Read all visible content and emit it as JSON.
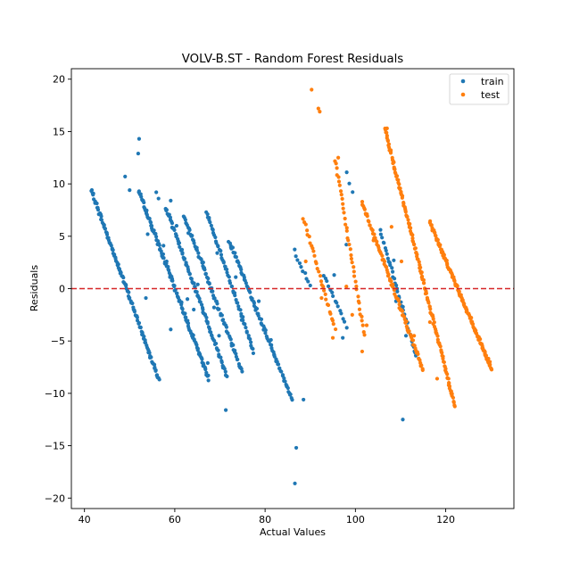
{
  "chart_data": {
    "type": "scatter",
    "title": "VOLV-B.ST - Random Forest Residuals",
    "xlabel": "Actual Values",
    "ylabel": "Residuals",
    "xlim": [
      37.1,
      135.1
    ],
    "ylim": [
      -21.0,
      21.0
    ],
    "xticks": [
      40,
      60,
      80,
      100,
      120
    ],
    "yticks": [
      -20,
      -15,
      -10,
      -5,
      0,
      5,
      10,
      15,
      20
    ],
    "grid": false,
    "legend_position": "top-right",
    "reference_line": {
      "y": 0,
      "color": "#d62728",
      "style": "dashed"
    },
    "series": [
      {
        "name": "train",
        "color": "#1f77b4",
        "segments": [
          {
            "x0": 41.5,
            "y0": 9.4,
            "x1": 56.5,
            "y1": -8.7,
            "n": 120
          },
          {
            "x0": 52.0,
            "y0": 9.3,
            "x1": 67.5,
            "y1": -8.6,
            "n": 120
          },
          {
            "x0": 58.0,
            "y0": 7.8,
            "x1": 71.5,
            "y1": -8.3,
            "n": 90
          },
          {
            "x0": 62.0,
            "y0": 7.0,
            "x1": 75.0,
            "y1": -8.0,
            "n": 80
          },
          {
            "x0": 67.0,
            "y0": 7.3,
            "x1": 77.5,
            "y1": -6.0,
            "n": 60
          },
          {
            "x0": 72.0,
            "y0": 4.6,
            "x1": 86.0,
            "y1": -10.6,
            "n": 90
          },
          {
            "x0": 86.5,
            "y0": 3.6,
            "x1": 90.0,
            "y1": 0.3,
            "n": 10
          },
          {
            "x0": 93.0,
            "y0": 1.3,
            "x1": 98.0,
            "y1": -3.6,
            "n": 15
          },
          {
            "x0": 98.0,
            "y0": 11.0,
            "x1": 99.5,
            "y1": 9.2,
            "n": 3
          },
          {
            "x0": 105.5,
            "y0": 5.5,
            "x1": 113.5,
            "y1": -6.5,
            "n": 40
          }
        ],
        "points": [
          [
            52.1,
            14.3
          ],
          [
            51.9,
            12.9
          ],
          [
            49.0,
            10.7
          ],
          [
            50.0,
            9.4
          ],
          [
            55.9,
            9.2
          ],
          [
            56.4,
            8.6
          ],
          [
            59.1,
            8.4
          ],
          [
            60.4,
            6.0
          ],
          [
            54.0,
            5.2
          ],
          [
            57.5,
            4.1
          ],
          [
            63.0,
            5.3
          ],
          [
            58.2,
            2.6
          ],
          [
            61.5,
            -1.3
          ],
          [
            53.6,
            -0.9
          ],
          [
            59.1,
            -3.9
          ],
          [
            62.8,
            -1.0
          ],
          [
            65.1,
            0.4
          ],
          [
            66.3,
            2.5
          ],
          [
            64.2,
            -2.0
          ],
          [
            68.7,
            -1.8
          ],
          [
            69.4,
            3.4
          ],
          [
            71.2,
            2.1
          ],
          [
            69.8,
            -4.5
          ],
          [
            65.9,
            -6.6
          ],
          [
            67.3,
            -7.1
          ],
          [
            73.5,
            1.1
          ],
          [
            74.8,
            -3.0
          ],
          [
            71.3,
            -11.6
          ],
          [
            78.6,
            -1.2
          ],
          [
            81.3,
            -4.9
          ],
          [
            86.9,
            -15.2
          ],
          [
            86.6,
            -18.6
          ],
          [
            88.5,
            -10.6
          ],
          [
            98.0,
            4.2
          ],
          [
            95.3,
            1.3
          ],
          [
            97.2,
            -4.7
          ],
          [
            110.5,
            -12.5
          ],
          [
            108.5,
            2.7
          ],
          [
            109.0,
            -1.2
          ],
          [
            111.2,
            -4.5
          ]
        ]
      },
      {
        "name": "test",
        "color": "#ff7f0e",
        "segments": [
          {
            "x0": 88.5,
            "y0": 6.7,
            "x1": 95.5,
            "y1": -3.9,
            "n": 30
          },
          {
            "x0": 95.5,
            "y0": 12.3,
            "x1": 102.0,
            "y1": -4.5,
            "n": 40
          },
          {
            "x0": 101.5,
            "y0": 8.2,
            "x1": 115.0,
            "y1": -7.8,
            "n": 90
          },
          {
            "x0": 106.5,
            "y0": 15.3,
            "x1": 122.0,
            "y1": -11.2,
            "n": 150
          },
          {
            "x0": 116.5,
            "y0": 6.3,
            "x1": 130.2,
            "y1": -7.7,
            "n": 130
          }
        ],
        "points": [
          [
            90.3,
            19.0
          ],
          [
            91.8,
            17.2
          ],
          [
            92.1,
            16.9
          ],
          [
            89.0,
            2.6
          ],
          [
            95.0,
            -4.7
          ],
          [
            101.5,
            -6.0
          ],
          [
            99.3,
            -2.5
          ],
          [
            96.2,
            12.5
          ],
          [
            104.0,
            4.6
          ],
          [
            108.0,
            5.9
          ],
          [
            110.2,
            2.6
          ],
          [
            113.0,
            -4.5
          ],
          [
            116.5,
            -3.2
          ],
          [
            118.1,
            -8.6
          ],
          [
            120.7,
            -9.0
          ],
          [
            121.2,
            -10.0
          ],
          [
            107.0,
            15.3
          ],
          [
            98.0,
            0.2
          ],
          [
            102.5,
            -3.5
          ],
          [
            92.5,
            -0.9
          ]
        ]
      }
    ]
  }
}
